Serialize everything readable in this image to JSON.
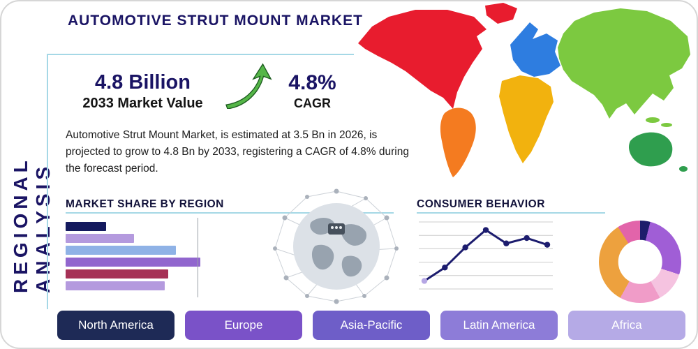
{
  "page": {
    "title": "AUTOMOTIVE STRUT MOUNT MARKET",
    "side_label": "REGIONAL ANALYSIS"
  },
  "highlight": {
    "value": "4.8 Billion",
    "value_caption": "2033 Market Value",
    "cagr": "4.8%",
    "cagr_caption": "CAGR",
    "description": "Automotive Strut Mount Market, is estimated at 3.5 Bn in 2026, is projected to grow to 4.8 Bn by 2033, registering a CAGR of 4.8% during the forecast period."
  },
  "sections": {
    "market_share": "MARKET SHARE BY REGION",
    "consumer_behavior": "CONSUMER BEHAVIOR"
  },
  "colors": {
    "accent_navy": "#1a1464",
    "panel_border": "#a5d8e6",
    "arrow_green": "#55b648"
  },
  "map_regions": [
    {
      "name": "North America",
      "color": "#e81c2e"
    },
    {
      "name": "South America",
      "color": "#f47b20"
    },
    {
      "name": "Europe",
      "color": "#2e7de0"
    },
    {
      "name": "Africa",
      "color": "#f2b20e"
    },
    {
      "name": "Asia",
      "color": "#7cc940"
    },
    {
      "name": "Oceania",
      "color": "#2f9e4e"
    }
  ],
  "region_buttons": [
    {
      "label": "North America",
      "color": "#1e2a56"
    },
    {
      "label": "Europe",
      "color": "#7a52c8"
    },
    {
      "label": "Asia-Pacific",
      "color": "#6e5ec8"
    },
    {
      "label": "Latin America",
      "color": "#8d7cd8"
    },
    {
      "label": "Africa",
      "color": "#b5aae6"
    }
  ],
  "chart_data": [
    {
      "id": "market_share_bars",
      "type": "bar",
      "orientation": "horizontal",
      "title": "MARKET SHARE BY REGION",
      "categories": [
        "",
        "",
        "",
        "",
        "",
        ""
      ],
      "values": [
        26,
        44,
        71,
        87,
        66,
        64
      ],
      "colors": [
        "#141a5e",
        "#b49ade",
        "#8fb2e6",
        "#9166ce",
        "#a63156",
        "#b49ade"
      ],
      "xlim": [
        0,
        100
      ],
      "axis_line_at": 85,
      "grid": "single-vertical-line"
    },
    {
      "id": "consumer_behavior_line",
      "type": "line",
      "title": "CONSUMER BEHAVIOR",
      "x": [
        1,
        2,
        3,
        4,
        5,
        6,
        7
      ],
      "values": [
        1.2,
        3.2,
        6.2,
        8.8,
        6.8,
        7.6,
        6.6
      ],
      "ylim": [
        0,
        10
      ],
      "line_color": "#1c1c6e",
      "marker_colors": [
        "#b5a6e4",
        "#1c1c6e",
        "#1c1c6e",
        "#1c1c6e",
        "#1c1c6e",
        "#1c1c6e",
        "#1c1c6e"
      ],
      "grid": "horizontal",
      "grid_lines": 6
    },
    {
      "id": "regional_donut",
      "type": "pie",
      "donut": true,
      "segments": [
        {
          "color": "#1d1d6b",
          "value": 4
        },
        {
          "color": "#a05ed6",
          "value": 26
        },
        {
          "color": "#f5c3e0",
          "value": 12
        },
        {
          "color": "#f09cc8",
          "value": 16
        },
        {
          "color": "#eda13e",
          "value": 33
        },
        {
          "color": "#e264aa",
          "value": 9
        }
      ]
    }
  ]
}
